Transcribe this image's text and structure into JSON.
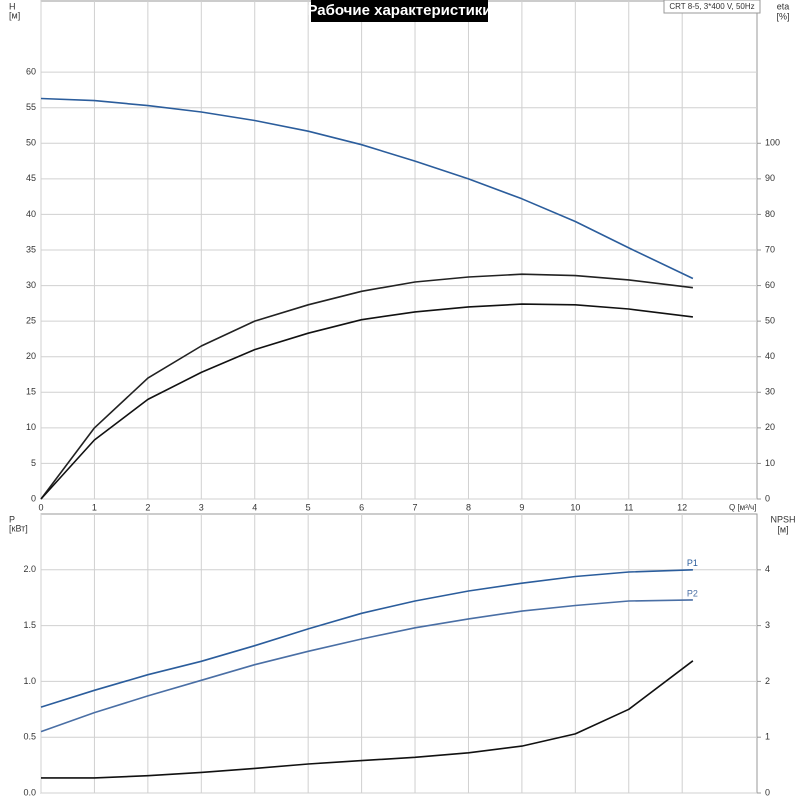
{
  "chart_data": [
    {
      "type": "line",
      "title": "Рабочие характеристики",
      "subtitle": "CRT 8-5, 3*400 V, 50Hz",
      "ylabel": "H",
      "yunit": "[м]",
      "y2label": "eta",
      "y2unit": "[%]",
      "xlabel": "Q [м³/ч]",
      "x": [
        0,
        1,
        2,
        3,
        4,
        5,
        6,
        7,
        8,
        9,
        10,
        11,
        12.2
      ],
      "xlim": [
        0,
        13.4
      ],
      "xticks": [
        0,
        1,
        2,
        3,
        4,
        5,
        6,
        7,
        8,
        9,
        10,
        11,
        12
      ],
      "ylim": [
        0,
        70
      ],
      "yticks": [
        0,
        5,
        10,
        15,
        20,
        25,
        30,
        35,
        40,
        45,
        50,
        55,
        60
      ],
      "y2lim": [
        0,
        140
      ],
      "y2ticks": [
        0,
        10,
        20,
        30,
        40,
        50,
        60,
        70,
        80,
        90,
        100
      ],
      "grid": true,
      "series": [
        {
          "color": "#2b5d9c",
          "values": [
            56.3,
            56,
            55.3,
            54.4,
            53.2,
            51.7,
            49.8,
            47.5,
            45,
            42.2,
            39,
            35.3,
            31
          ]
        },
        {
          "color": "#222222",
          "axis": "y2",
          "values": [
            0,
            20,
            34,
            43,
            50,
            54.6,
            58.4,
            61,
            62.4,
            63.2,
            62.8,
            61.6,
            59.4
          ]
        },
        {
          "color": "#111111",
          "axis": "y2",
          "values": [
            0,
            16.6,
            28,
            35.6,
            42,
            46.6,
            50.4,
            52.6,
            54,
            54.8,
            54.6,
            53.4,
            51.2
          ]
        }
      ]
    },
    {
      "type": "line",
      "ylabel": "P",
      "yunit": "[кВт]",
      "y2label": "NPSH",
      "y2unit": "[м]",
      "x": [
        0,
        1,
        2,
        3,
        4,
        5,
        6,
        7,
        8,
        9,
        10,
        11,
        12.2
      ],
      "xlim": [
        0,
        13.4
      ],
      "xticks": [
        0,
        1,
        2,
        3,
        4,
        5,
        6,
        7,
        8,
        9,
        10,
        11,
        12
      ],
      "ylim": [
        0,
        2.5
      ],
      "yticks": [
        {
          "value": 0,
          "label": "0.0"
        },
        0.5,
        {
          "value": 1,
          "label": "1.0"
        },
        1.5,
        {
          "value": 2,
          "label": "2.0"
        }
      ],
      "y2lim": [
        0,
        5
      ],
      "y2ticks": [
        0,
        1,
        2,
        3,
        4
      ],
      "grid": true,
      "series": [
        {
          "name": "P1",
          "color": "#2b5d9c",
          "values": [
            0.77,
            0.92,
            1.06,
            1.18,
            1.32,
            1.47,
            1.61,
            1.72,
            1.81,
            1.88,
            1.94,
            1.98,
            2.0
          ]
        },
        {
          "name": "P2",
          "color": "#4a6fa5",
          "values": [
            0.55,
            0.72,
            0.87,
            1.01,
            1.15,
            1.27,
            1.38,
            1.48,
            1.56,
            1.63,
            1.68,
            1.72,
            1.73
          ]
        },
        {
          "color": "#111111",
          "axis": "y2",
          "values": [
            0.27,
            0.27,
            0.31,
            0.37,
            0.44,
            0.52,
            0.58,
            0.64,
            0.72,
            0.84,
            1.06,
            1.5,
            2.37
          ]
        }
      ]
    }
  ]
}
